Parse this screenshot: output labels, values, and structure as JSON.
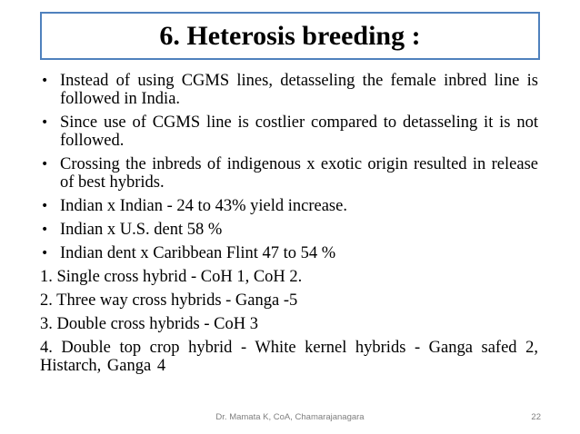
{
  "slide": {
    "title": "6. Heterosis breeding :",
    "bullets": [
      "Instead of using CGMS lines, detasseling the female inbred line is followed in India.",
      "Since use of CGMS line is costlier compared to detasseling it is not followed.",
      "Crossing the inbreds of indigenous x exotic origin resulted in release of best hybrids.",
      "Indian x Indian - 24 to 43% yield increase.",
      "Indian x U.S. dent 58 %",
      "Indian dent x Caribbean Flint 47 to 54 %"
    ],
    "bullet_symbol": "•",
    "numbered": [
      "1. Single cross hybrid - CoH 1, CoH 2.",
      "2. Three way cross hybrids - Ganga -5",
      "3. Double cross hybrids - CoH 3",
      "4. Double top crop hybrid - White kernel hybrids - Ganga safed 2, Histarch, Ganga 4"
    ]
  },
  "footer": {
    "text": "Dr. Mamata K, CoA, Chamarajanagara",
    "page_number": "22"
  },
  "colors": {
    "title_border": "#4f81bd",
    "footer_text": "#7f7f7f"
  }
}
